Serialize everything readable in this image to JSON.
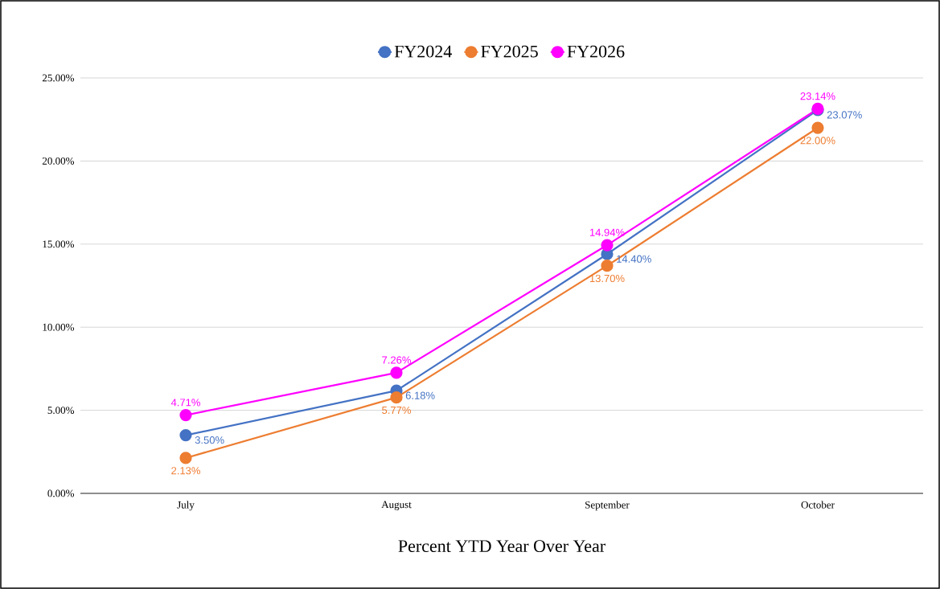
{
  "chart_data": {
    "type": "line",
    "xlabel": "Percent YTD Year Over Year",
    "categories": [
      "July",
      "August",
      "September",
      "October"
    ],
    "series": [
      {
        "name": "FY2024",
        "color": "#4472c4",
        "values": [
          3.5,
          6.18,
          14.4,
          23.07
        ],
        "value_labels": [
          "3.50%",
          "6.18%",
          "14.40%",
          "23.07%"
        ]
      },
      {
        "name": "FY2025",
        "color": "#ed7d31",
        "values": [
          2.13,
          5.77,
          13.7,
          22.0
        ],
        "value_labels": [
          "2.13%",
          "5.77%",
          "13.70%",
          "22.00%"
        ]
      },
      {
        "name": "FY2026",
        "color": "#ff00ff",
        "values": [
          4.71,
          7.26,
          14.94,
          23.14
        ],
        "value_labels": [
          "4.71%",
          "7.26%",
          "14.94%",
          "23.14%"
        ]
      }
    ],
    "ylim": [
      0,
      25
    ],
    "yticks": [
      {
        "value": 0,
        "label": "0.00%"
      },
      {
        "value": 5,
        "label": "5.00%"
      },
      {
        "value": 10,
        "label": "10.00%"
      },
      {
        "value": 15,
        "label": "15.00%"
      },
      {
        "value": 20,
        "label": "20.00%"
      },
      {
        "value": 25,
        "label": "25.00%"
      }
    ],
    "grid": "y",
    "legend": "top",
    "marker": "circle",
    "line_style": "solid"
  }
}
